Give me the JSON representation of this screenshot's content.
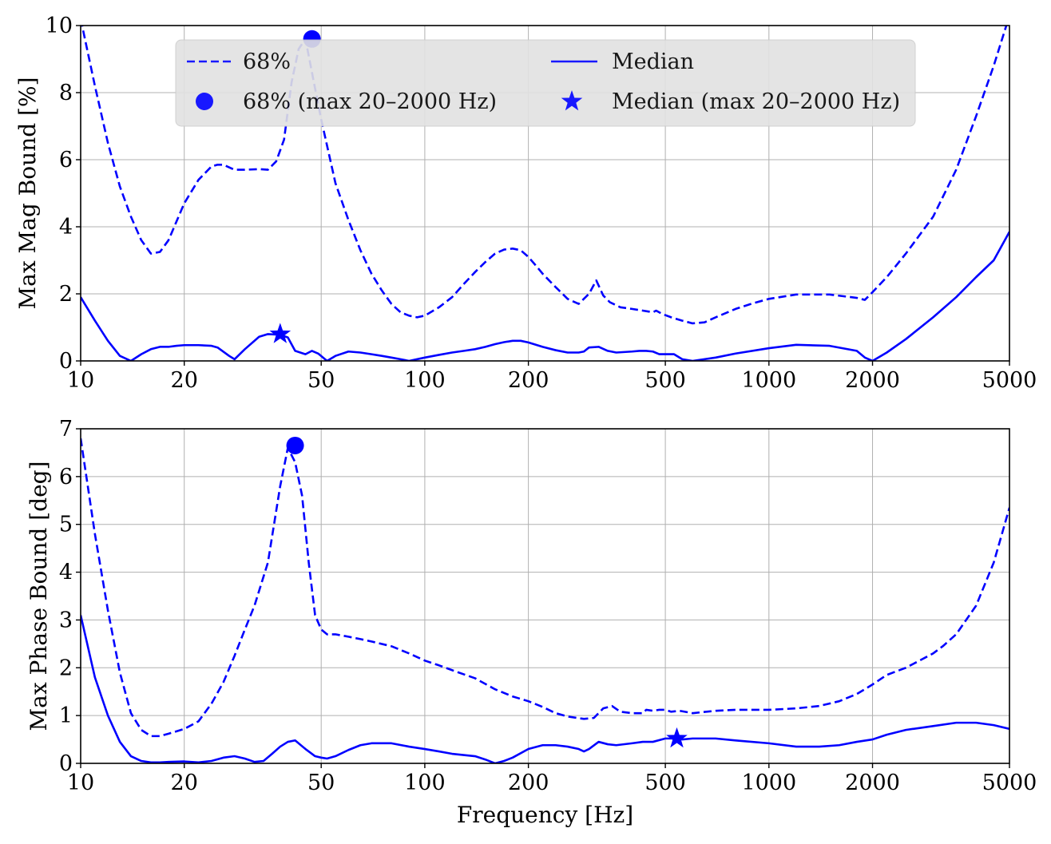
{
  "chart_data": [
    {
      "type": "line",
      "xscale": "log",
      "xlim": [
        10,
        5000
      ],
      "ylim": [
        0,
        10
      ],
      "xticks": [
        10,
        20,
        50,
        100,
        200,
        500,
        1000,
        2000,
        5000
      ],
      "xtick_labels": [
        "10",
        "20",
        "50",
        "100",
        "200",
        "500",
        "1000",
        "2000",
        "5000"
      ],
      "yticks": [
        0,
        2,
        4,
        6,
        8,
        10
      ],
      "ytick_labels": [
        "0",
        "2",
        "4",
        "6",
        "8",
        "10"
      ],
      "xlabel": "",
      "ylabel": "Max Mag Bound [%]",
      "grid": true,
      "legend_placement": "top-center",
      "color": "#0000ff",
      "series": [
        {
          "name": "68%",
          "style": "dashed",
          "x": [
            10,
            11,
            12,
            13,
            14,
            15,
            16,
            17,
            18,
            20,
            22,
            24,
            25,
            26,
            28,
            30,
            33,
            35,
            37,
            39,
            41,
            43,
            45,
            47,
            50,
            55,
            60,
            65,
            70,
            75,
            80,
            85,
            90,
            95,
            100,
            110,
            120,
            130,
            140,
            150,
            160,
            170,
            180,
            190,
            200,
            210,
            220,
            240,
            260,
            280,
            300,
            315,
            330,
            345,
            370,
            400,
            430,
            460,
            470,
            490,
            520,
            560,
            600,
            650,
            700,
            800,
            900,
            1000,
            1200,
            1500,
            1800,
            1900,
            2000,
            2200,
            2500,
            3000,
            3500,
            4000,
            4500,
            5000
          ],
          "y": [
            10.2,
            8.2,
            6.5,
            5.2,
            4.3,
            3.6,
            3.2,
            3.25,
            3.6,
            4.7,
            5.4,
            5.8,
            5.85,
            5.85,
            5.7,
            5.7,
            5.72,
            5.7,
            5.95,
            6.6,
            8.3,
            9.3,
            9.6,
            8.6,
            7.2,
            5.3,
            4.2,
            3.3,
            2.6,
            2.1,
            1.7,
            1.45,
            1.35,
            1.3,
            1.35,
            1.6,
            1.9,
            2.3,
            2.65,
            2.95,
            3.2,
            3.32,
            3.35,
            3.3,
            3.1,
            2.85,
            2.6,
            2.2,
            1.85,
            1.7,
            2.0,
            2.4,
            1.95,
            1.75,
            1.6,
            1.55,
            1.5,
            1.45,
            1.5,
            1.4,
            1.3,
            1.2,
            1.12,
            1.15,
            1.3,
            1.55,
            1.72,
            1.85,
            1.98,
            1.98,
            1.88,
            1.82,
            2.05,
            2.5,
            3.2,
            4.3,
            5.7,
            7.3,
            8.8,
            10.3
          ]
        },
        {
          "name": "Median",
          "style": "solid",
          "x": [
            10,
            11,
            12,
            13,
            14,
            15,
            16,
            17,
            18,
            19,
            20,
            22,
            24,
            25,
            27,
            28,
            30,
            33,
            35,
            38,
            40,
            42,
            45,
            47,
            49,
            52,
            55,
            60,
            65,
            70,
            75,
            80,
            85,
            90,
            100,
            110,
            120,
            130,
            140,
            150,
            160,
            170,
            180,
            190,
            200,
            220,
            240,
            260,
            280,
            290,
            300,
            320,
            340,
            360,
            400,
            420,
            440,
            460,
            480,
            500,
            530,
            560,
            600,
            700,
            800,
            1000,
            1200,
            1500,
            1800,
            1900,
            2000,
            2200,
            2500,
            3000,
            3500,
            4000,
            4500,
            5000
          ],
          "y": [
            1.9,
            1.2,
            0.6,
            0.15,
            0.0,
            0.2,
            0.35,
            0.42,
            0.42,
            0.45,
            0.47,
            0.47,
            0.45,
            0.4,
            0.15,
            0.05,
            0.35,
            0.72,
            0.8,
            0.78,
            0.7,
            0.3,
            0.2,
            0.3,
            0.22,
            0.0,
            0.15,
            0.28,
            0.25,
            0.2,
            0.15,
            0.1,
            0.05,
            0.0,
            0.1,
            0.18,
            0.25,
            0.3,
            0.35,
            0.42,
            0.5,
            0.56,
            0.6,
            0.6,
            0.55,
            0.42,
            0.32,
            0.25,
            0.25,
            0.28,
            0.4,
            0.42,
            0.3,
            0.25,
            0.28,
            0.3,
            0.3,
            0.28,
            0.2,
            0.2,
            0.2,
            0.05,
            0.0,
            0.1,
            0.22,
            0.38,
            0.48,
            0.45,
            0.3,
            0.1,
            0.0,
            0.25,
            0.65,
            1.3,
            1.9,
            2.5,
            3.0,
            3.85
          ]
        }
      ],
      "markers": [
        {
          "name": "68% (max 20–2000 Hz)",
          "shape": "circle",
          "x": 47,
          "y": 9.6
        },
        {
          "name": "Median (max 20–2000 Hz)",
          "shape": "star",
          "x": 38,
          "y": 0.8
        }
      ]
    },
    {
      "type": "line",
      "xscale": "log",
      "xlim": [
        10,
        5000
      ],
      "ylim": [
        0,
        7
      ],
      "xticks": [
        10,
        20,
        50,
        100,
        200,
        500,
        1000,
        2000,
        5000
      ],
      "xtick_labels": [
        "10",
        "20",
        "50",
        "100",
        "200",
        "500",
        "1000",
        "2000",
        "5000"
      ],
      "yticks": [
        0,
        1,
        2,
        3,
        4,
        5,
        6,
        7
      ],
      "ytick_labels": [
        "0",
        "1",
        "2",
        "3",
        "4",
        "5",
        "6",
        "7"
      ],
      "xlabel": "Frequency [Hz]",
      "ylabel": "Max Phase Bound [deg]",
      "grid": true,
      "color": "#0000ff",
      "series": [
        {
          "name": "68%",
          "style": "dashed",
          "x": [
            10,
            11,
            12,
            13,
            14,
            15,
            16,
            17,
            18,
            20,
            22,
            24,
            26,
            28,
            30,
            32,
            35,
            38,
            40,
            42,
            44,
            46,
            48,
            50,
            52,
            55,
            60,
            65,
            70,
            80,
            90,
            100,
            110,
            120,
            140,
            160,
            180,
            200,
            220,
            240,
            260,
            290,
            310,
            330,
            350,
            370,
            400,
            430,
            440,
            460,
            480,
            500,
            520,
            550,
            600,
            700,
            800,
            1000,
            1200,
            1400,
            1600,
            1800,
            2000,
            2200,
            2500,
            3000,
            3200,
            3500,
            4000,
            4500,
            5000
          ],
          "y": [
            6.8,
            4.8,
            3.2,
            1.9,
            1.05,
            0.7,
            0.57,
            0.57,
            0.62,
            0.72,
            0.88,
            1.25,
            1.7,
            2.25,
            2.8,
            3.3,
            4.2,
            5.8,
            6.6,
            6.3,
            5.6,
            4.2,
            3.1,
            2.8,
            2.7,
            2.7,
            2.65,
            2.6,
            2.55,
            2.45,
            2.3,
            2.15,
            2.05,
            1.95,
            1.78,
            1.55,
            1.4,
            1.3,
            1.18,
            1.05,
            0.98,
            0.93,
            0.95,
            1.15,
            1.2,
            1.08,
            1.05,
            1.05,
            1.12,
            1.1,
            1.12,
            1.12,
            1.08,
            1.1,
            1.05,
            1.1,
            1.12,
            1.12,
            1.15,
            1.2,
            1.3,
            1.45,
            1.65,
            1.85,
            2.0,
            2.3,
            2.45,
            2.7,
            3.3,
            4.2,
            5.35
          ]
        },
        {
          "name": "Median",
          "style": "solid",
          "x": [
            10,
            11,
            12,
            13,
            14,
            15,
            16,
            17,
            18,
            20,
            22,
            24,
            26,
            28,
            30,
            32,
            34,
            36,
            38,
            40,
            42,
            45,
            48,
            50,
            52,
            55,
            60,
            65,
            70,
            80,
            90,
            100,
            110,
            120,
            140,
            150,
            160,
            170,
            180,
            200,
            220,
            240,
            260,
            280,
            290,
            300,
            320,
            340,
            360,
            400,
            430,
            460,
            500,
            530,
            560,
            600,
            700,
            800,
            1000,
            1200,
            1400,
            1600,
            1800,
            2000,
            2200,
            2500,
            3000,
            3500,
            4000,
            4500,
            5000
          ],
          "y": [
            3.1,
            1.8,
            1.0,
            0.45,
            0.15,
            0.05,
            0.02,
            0.02,
            0.03,
            0.04,
            0.02,
            0.05,
            0.12,
            0.15,
            0.1,
            0.03,
            0.05,
            0.2,
            0.35,
            0.45,
            0.48,
            0.3,
            0.15,
            0.12,
            0.1,
            0.15,
            0.28,
            0.38,
            0.42,
            0.42,
            0.35,
            0.3,
            0.25,
            0.2,
            0.15,
            0.08,
            0.0,
            0.05,
            0.12,
            0.3,
            0.38,
            0.38,
            0.35,
            0.3,
            0.25,
            0.3,
            0.45,
            0.4,
            0.38,
            0.42,
            0.45,
            0.45,
            0.52,
            0.52,
            0.5,
            0.52,
            0.52,
            0.48,
            0.42,
            0.35,
            0.35,
            0.38,
            0.45,
            0.5,
            0.6,
            0.7,
            0.78,
            0.85,
            0.85,
            0.8,
            0.72
          ]
        }
      ],
      "markers": [
        {
          "name": "68% (max 20–2000 Hz)",
          "shape": "circle",
          "x": 42,
          "y": 6.65
        },
        {
          "name": "Median (max 20–2000 Hz)",
          "shape": "star",
          "x": 540,
          "y": 0.52
        }
      ]
    }
  ],
  "legend": {
    "entries": [
      {
        "label": "68%",
        "symbol": "dashed-line"
      },
      {
        "label": "Median",
        "symbol": "solid-line"
      },
      {
        "label": "68% (max 20–2000 Hz)",
        "symbol": "circle-marker"
      },
      {
        "label": "Median (max 20–2000 Hz)",
        "symbol": "star-marker"
      }
    ]
  }
}
